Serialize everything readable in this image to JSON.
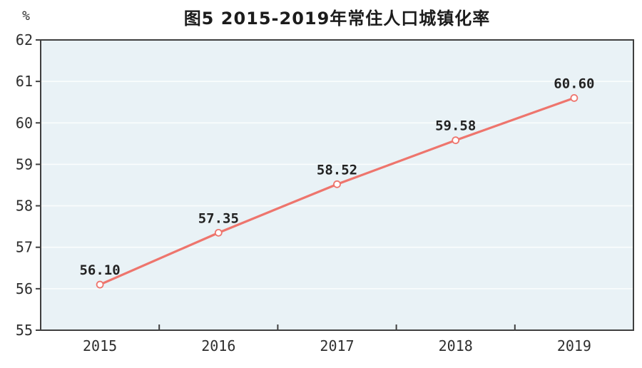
{
  "page": {
    "title": "图5  2015-2019年常住人口城镇化率"
  },
  "chart_data": {
    "type": "line",
    "title": "图5  2015-2019年常住人口城镇化率",
    "xlabel": "",
    "ylabel": "%",
    "categories": [
      "2015",
      "2016",
      "2017",
      "2018",
      "2019"
    ],
    "series": [
      {
        "name": "常住人口城镇化率",
        "values": [
          56.1,
          57.35,
          58.52,
          59.58,
          60.6
        ],
        "labels": [
          "56.10",
          "57.35",
          "58.52",
          "59.58",
          "60.60"
        ]
      }
    ],
    "ylim": [
      55,
      62
    ],
    "ytick_step": 1,
    "grid": "horizontal",
    "legend": "none",
    "colors": {
      "line": "#ee756d",
      "marker_fill": "#ffffff",
      "plot_background": "#e9f2f6",
      "gridline": "#fafdfd",
      "axis_border": "#3f3f3f",
      "tick_label": "#2e2e2e",
      "data_label": "#222222"
    }
  }
}
